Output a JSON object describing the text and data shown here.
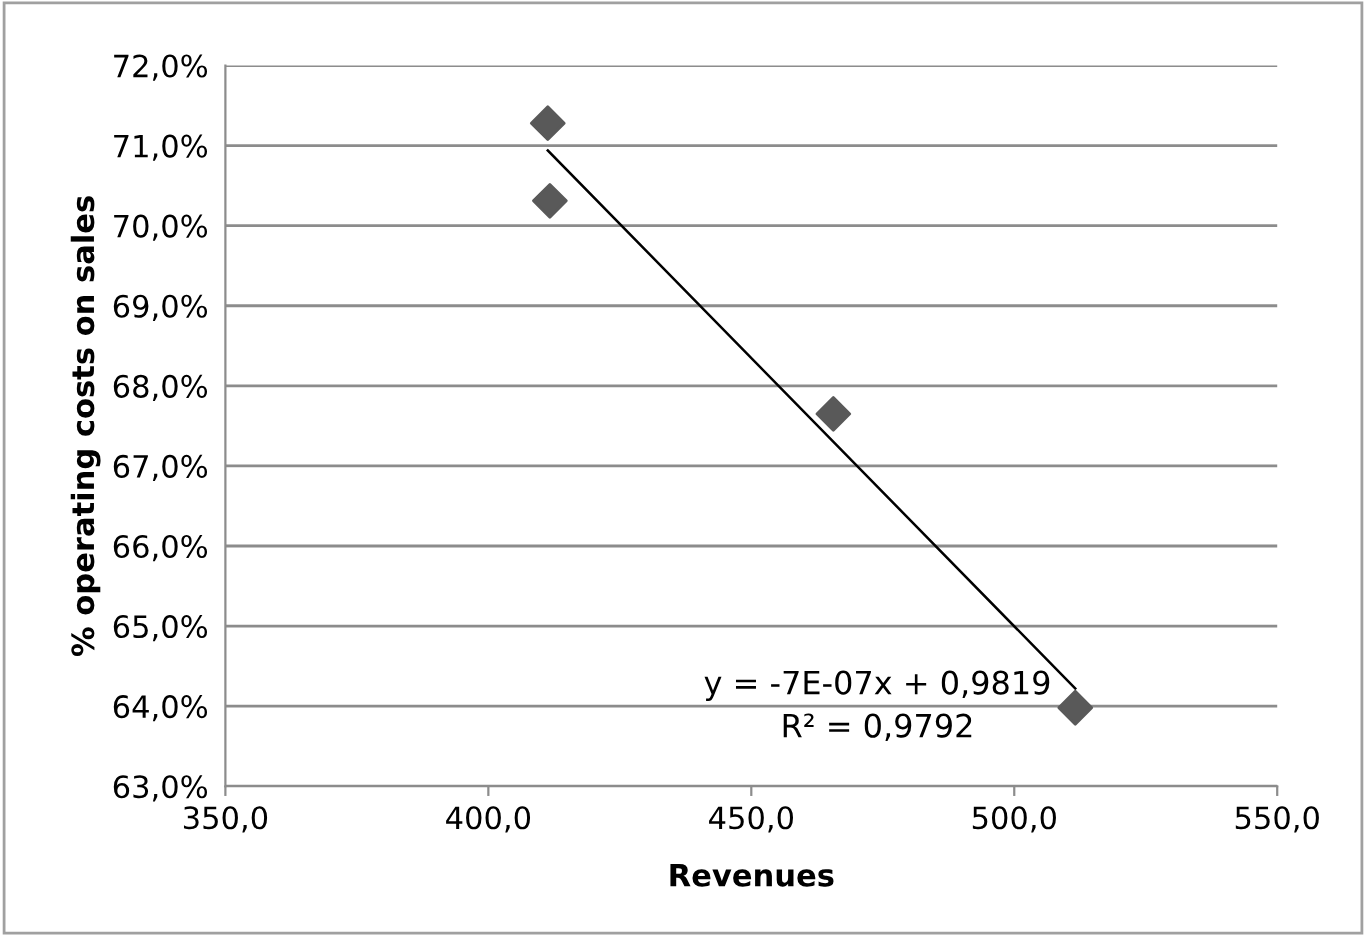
{
  "chart_data": {
    "type": "scatter",
    "xlabel": "Revenues",
    "ylabel": "% operating costs on sales",
    "marker": "diamond",
    "grid": "y",
    "legend": false,
    "series": [
      {
        "color": "#595959",
        "x": [
          411.3,
          411.7,
          465.6,
          511.6
        ],
        "values": [
          71.28,
          70.31,
          67.65,
          63.98
        ]
      },
      {
        "type": "line",
        "marker": "none",
        "color": "#000000",
        "x": [
          411.3,
          511.6
        ],
        "values": [
          70.94,
          64.22
        ]
      }
    ],
    "annotations": [
      "y = -7E-07x + 0,9819\nR² = 0,9792"
    ],
    "xlim": [
      350,
      550
    ],
    "ylim": [
      63,
      72
    ],
    "xticks": [
      {
        "value": 350,
        "label": "350,0"
      },
      {
        "value": 400,
        "label": "400,0"
      },
      {
        "value": 450,
        "label": "450,0"
      },
      {
        "value": 500,
        "label": "500,0"
      },
      {
        "value": 550,
        "label": "550,0"
      }
    ],
    "yticks": [
      {
        "value": 63,
        "label": "63,0%"
      },
      {
        "value": 64,
        "label": "64,0%"
      },
      {
        "value": 65,
        "label": "65,0%"
      },
      {
        "value": 66,
        "label": "66,0%"
      },
      {
        "value": 67,
        "label": "67,0%"
      },
      {
        "value": 68,
        "label": "68,0%"
      },
      {
        "value": 69,
        "label": "69,0%"
      },
      {
        "value": 70,
        "label": "70,0%"
      },
      {
        "value": 71,
        "label": "71,0%"
      },
      {
        "value": 72,
        "label": "72,0%"
      }
    ]
  }
}
